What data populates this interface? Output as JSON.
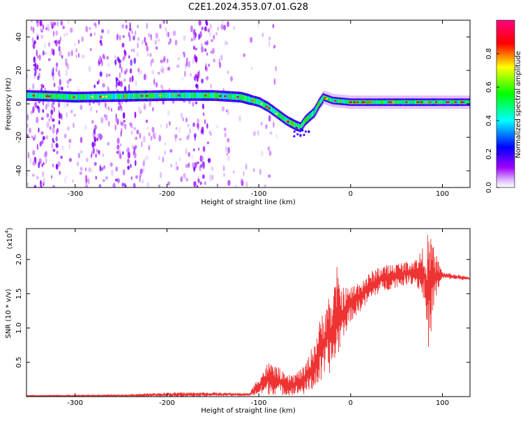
{
  "title": "C2E1.2024.353.07.01.G28",
  "chart_data": [
    {
      "type": "heatmap",
      "xlabel": "Height of straight line (km)",
      "ylabel": "Frequency (Hz)",
      "xlim": [
        -353,
        130
      ],
      "ylim": [
        -50,
        50
      ],
      "x_ticks": [
        -300,
        -200,
        -100,
        0,
        100
      ],
      "y_ticks": [
        -40,
        -20,
        0,
        20,
        40
      ],
      "colorbar": {
        "label": "Normalized spectral amplitude",
        "range": [
          0,
          1
        ],
        "ticks": [
          "0.0",
          "0.2",
          "0.4",
          "0.6",
          "0.8"
        ],
        "tick_values": [
          0,
          0.2,
          0.4,
          0.6,
          0.8
        ],
        "colors": [
          "#ffffff",
          "#a000ff",
          "#0000ff",
          "#00ffff",
          "#00ff00",
          "#ffff00",
          "#ff0000",
          "#ff0080"
        ]
      },
      "ridge_center_hz": [
        {
          "x": -350,
          "y": 5
        },
        {
          "x": -300,
          "y": 4
        },
        {
          "x": -250,
          "y": 4.5
        },
        {
          "x": -200,
          "y": 5
        },
        {
          "x": -150,
          "y": 5
        },
        {
          "x": -120,
          "y": 4
        },
        {
          "x": -100,
          "y": 1
        },
        {
          "x": -90,
          "y": -2
        },
        {
          "x": -80,
          "y": -6
        },
        {
          "x": -70,
          "y": -10
        },
        {
          "x": -60,
          "y": -13
        },
        {
          "x": -55,
          "y": -14
        },
        {
          "x": -50,
          "y": -10
        },
        {
          "x": -40,
          "y": -5
        },
        {
          "x": -35,
          "y": 0
        },
        {
          "x": -30,
          "y": 4
        },
        {
          "x": -20,
          "y": 2
        },
        {
          "x": 0,
          "y": 1
        },
        {
          "x": 50,
          "y": 1
        },
        {
          "x": 100,
          "y": 1
        },
        {
          "x": 130,
          "y": 1
        }
      ],
      "noise_region_x": [
        -353,
        -110
      ]
    },
    {
      "type": "line",
      "xlabel": "Height of straight line (km)",
      "ylabel": "SNR (10 * v/v)",
      "multiplier_label": "(x10",
      "multiplier_exp": "4",
      "xlim": [
        -353,
        130
      ],
      "ylim": [
        0,
        2.45
      ],
      "x_ticks": [
        -300,
        -200,
        -100,
        0,
        100
      ],
      "y_ticks": [
        0.5,
        1.0,
        1.5,
        2.0
      ],
      "y_tick_labels": [
        "0.5",
        "1.0",
        "1.5",
        "2.0"
      ],
      "series": [
        {
          "color": "#ee3333",
          "envelope": [
            {
              "x": -353,
              "lo": 0.0,
              "hi": 0.02
            },
            {
              "x": -250,
              "lo": 0.0,
              "hi": 0.03
            },
            {
              "x": -200,
              "lo": 0.0,
              "hi": 0.06
            },
            {
              "x": -150,
              "lo": 0.01,
              "hi": 0.06
            },
            {
              "x": -110,
              "lo": 0.01,
              "hi": 0.05
            },
            {
              "x": -100,
              "lo": 0.02,
              "hi": 0.3
            },
            {
              "x": -90,
              "lo": 0.03,
              "hi": 0.5
            },
            {
              "x": -80,
              "lo": 0.03,
              "hi": 0.45
            },
            {
              "x": -70,
              "lo": 0.02,
              "hi": 0.3
            },
            {
              "x": -60,
              "lo": 0.02,
              "hi": 0.35
            },
            {
              "x": -50,
              "lo": 0.03,
              "hi": 0.45
            },
            {
              "x": -40,
              "lo": 0.1,
              "hi": 0.8
            },
            {
              "x": -30,
              "lo": 0.2,
              "hi": 1.3
            },
            {
              "x": -25,
              "lo": 0.3,
              "hi": 1.5
            },
            {
              "x": -20,
              "lo": 0.4,
              "hi": 1.4
            },
            {
              "x": -15,
              "lo": 0.5,
              "hi": 1.9
            },
            {
              "x": -10,
              "lo": 0.8,
              "hi": 1.6
            },
            {
              "x": 0,
              "lo": 1.1,
              "hi": 1.6
            },
            {
              "x": 15,
              "lo": 1.3,
              "hi": 1.75
            },
            {
              "x": 30,
              "lo": 1.5,
              "hi": 1.9
            },
            {
              "x": 50,
              "lo": 1.6,
              "hi": 1.95
            },
            {
              "x": 70,
              "lo": 1.65,
              "hi": 2.0
            },
            {
              "x": 80,
              "lo": 1.4,
              "hi": 2.2
            },
            {
              "x": 85,
              "lo": 0.55,
              "hi": 2.42
            },
            {
              "x": 90,
              "lo": 1.3,
              "hi": 2.2
            },
            {
              "x": 100,
              "lo": 1.72,
              "hi": 1.82
            },
            {
              "x": 130,
              "lo": 1.7,
              "hi": 1.74
            }
          ]
        }
      ]
    }
  ]
}
